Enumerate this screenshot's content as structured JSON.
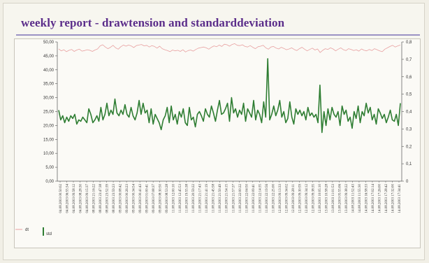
{
  "report": {
    "title": "weekly report - drawtension and standarddeviation"
  },
  "colors": {
    "dt": "#e8a0a0",
    "std": "#2e7d32",
    "title": "#5b2d8a",
    "rule": "#9b93c4"
  },
  "chart_data": {
    "type": "line",
    "title": "weekly report - drawtension and standarddeviation",
    "xlabel": "",
    "ylabel": "",
    "ylim": [
      0,
      50
    ],
    "y2lim": [
      0,
      0.8
    ],
    "y_ticks": [
      "0,00",
      "5,00",
      "10,00",
      "15,00",
      "20,00",
      "25,00",
      "30,00",
      "35,00",
      "40,00",
      "45,00",
      "50,00"
    ],
    "y2_ticks": [
      "0",
      "0,1",
      "0,2",
      "0,3",
      "0,4",
      "0,5",
      "0,6",
      "0,7",
      "0,8"
    ],
    "x_tick_labels": [
      "04.08.2003 00:50:02",
      "04.08.2003 06:55:34",
      "04.08.2003 09:58:12",
      "04.08.2003 08:28:30",
      "04.08.2003 09:15:37",
      "08.08.2003 21:16:22",
      "08.08.2003 23:47:38",
      "08.08.2003 23:52:39",
      "08.08.2003 23:59:23",
      "09.08.2003 00:08:42",
      "09.08.2003 00:26:23",
      "09.08.2003 00:34:54",
      "09.08.2003 00:41:43",
      "09.08.2003 01:00:41",
      "09.08.2003 07:08:37",
      "09.08.2003 08:30:50",
      "09.08.2003 08:53:28",
      "11.08.2003 12:00:10",
      "11.08.2003 12:45:53",
      "11.08.2003 19:55:38",
      "11.08.2003 20:59:22",
      "11.08.2003 21:17:43",
      "11.08.2003 21:41:19",
      "11.08.2003 21:45:58",
      "11.08.2003 21:50:49",
      "11.08.2003 21:54:15",
      "11.08.2003 21:57:37",
      "11.08.2003 22:00:22",
      "11.08.2003 22:04:50",
      "11.08.2003 22:09:41",
      "11.08.2003 22:14:35",
      "11.08.2003 22:19:56",
      "11.08.2003 22:25:00",
      "12.08.2003 09:13:33",
      "12.08.2003 09:34:02",
      "12.08.2003 09:28:11",
      "12.08.2003 09:30:59",
      "12.08.2003 09:34:12",
      "12.08.2003 09:38:35",
      "12.08.2003 10:05:10",
      "13.08.2003 10:58:28",
      "13.08.2003 11:01:53",
      "13.08.2003 05:55:06",
      "13.08.2003 09:38:22",
      "14.08.2003 11:52:43",
      "14.08.2003 11:55:30",
      "14.08.2003 16:58:33",
      "14.08.2003 17:02:14",
      "14.08.2003 17:26:00",
      "14.08.2003 17:28:42",
      "14.08.2003 17:32:00",
      "14.08.2003 17:34:41"
    ],
    "legend": [
      {
        "key": "dt",
        "label": "dt"
      },
      {
        "key": "std",
        "label": "std"
      }
    ],
    "series": [
      {
        "name": "dt",
        "axis": "left",
        "values": [
          47.5,
          46.8,
          47.2,
          46.5,
          47.0,
          47.3,
          46.6,
          47.1,
          47.4,
          46.7,
          46.9,
          47.2,
          47.0,
          46.6,
          47.1,
          47.5,
          48.6,
          49.0,
          48.2,
          47.6,
          48.1,
          48.8,
          47.9,
          47.4,
          48.3,
          48.9,
          48.5,
          48.9,
          48.6,
          48.0,
          48.7,
          48.9,
          49.1,
          48.6,
          48.8,
          48.2,
          48.7,
          48.4,
          47.8,
          48.5,
          47.6,
          47.2,
          46.9,
          46.5,
          47.1,
          46.8,
          47.0,
          46.6,
          47.2,
          46.4,
          46.9,
          47.1,
          46.7,
          47.3,
          47.8,
          48.0,
          48.2,
          47.9,
          47.4,
          48.1,
          48.6,
          48.3,
          48.9,
          48.4,
          49.2,
          49.0,
          48.5,
          49.1,
          49.4,
          48.8,
          48.7,
          49.0,
          48.4,
          48.2,
          48.7,
          48.1,
          47.6,
          48.3,
          48.5,
          48.8,
          47.9,
          47.4,
          48.2,
          48.4,
          47.8,
          47.5,
          48.1,
          47.7,
          47.2,
          47.5,
          47.9,
          47.3,
          46.9,
          47.6,
          48.1,
          47.4,
          46.8,
          47.3,
          47.8,
          47.1,
          47.5,
          46.2,
          47.0,
          47.6,
          47.3,
          47.9,
          47.5,
          46.8,
          47.4,
          47.9,
          47.2,
          46.9,
          47.6,
          47.3,
          46.9,
          47.2,
          46.7,
          47.5,
          47.0,
          46.8,
          47.3,
          46.9,
          47.6,
          47.2,
          46.8,
          46.5,
          47.4,
          47.9,
          48.4,
          48.8,
          48.2,
          48.6,
          48.9
        ]
      },
      {
        "name": "std",
        "axis": "left",
        "values": [
          25.5,
          22.0,
          23.5,
          21.0,
          23.0,
          21.5,
          23.5,
          22.5,
          24.0,
          20.5,
          22.0,
          21.5,
          23.0,
          22.0,
          21.0,
          26.0,
          24.0,
          21.0,
          22.0,
          23.5,
          21.5,
          26.5,
          22.0,
          24.0,
          28.0,
          23.5,
          25.5,
          24.0,
          29.5,
          24.5,
          23.5,
          25.5,
          24.0,
          27.5,
          24.0,
          23.0,
          26.5,
          23.5,
          22.0,
          24.5,
          29.0,
          24.0,
          28.0,
          24.5,
          25.5,
          21.0,
          26.0,
          20.5,
          24.0,
          22.5,
          21.0,
          18.5,
          22.0,
          23.5,
          26.5,
          21.0,
          27.0,
          22.0,
          24.0,
          20.5,
          25.0,
          23.0,
          26.0,
          21.0,
          20.0,
          26.5,
          22.0,
          23.0,
          19.5,
          24.0,
          25.0,
          23.5,
          21.5,
          26.0,
          24.0,
          23.0,
          27.0,
          24.5,
          21.5,
          25.5,
          29.0,
          24.0,
          24.5,
          26.0,
          28.0,
          21.5,
          30.0,
          24.5,
          26.0,
          23.0,
          25.5,
          24.0,
          28.0,
          21.5,
          26.0,
          24.5,
          23.0,
          29.0,
          22.0,
          25.5,
          24.0,
          21.0,
          28.5,
          23.0,
          44.0,
          22.0,
          24.0,
          27.0,
          23.5,
          25.5,
          29.0,
          23.0,
          25.0,
          21.0,
          22.5,
          28.5,
          23.0,
          20.5,
          26.0,
          24.0,
          25.5,
          23.5,
          25.0,
          22.0,
          26.5,
          23.5,
          24.5,
          23.0,
          24.0,
          21.0,
          34.5,
          17.5,
          25.0,
          20.0,
          26.0,
          22.0,
          26.5,
          24.0,
          23.0,
          25.0,
          20.0,
          27.0,
          24.0,
          25.5,
          21.5,
          23.0,
          19.0,
          25.0,
          22.5,
          27.0,
          21.0,
          25.0,
          23.5,
          28.0,
          24.5,
          26.5,
          22.0,
          24.0,
          20.5,
          26.0,
          24.5,
          22.5,
          24.0,
          21.0,
          23.0,
          25.5,
          22.0,
          21.5,
          24.0,
          20.0,
          28.0
        ]
      }
    ]
  }
}
